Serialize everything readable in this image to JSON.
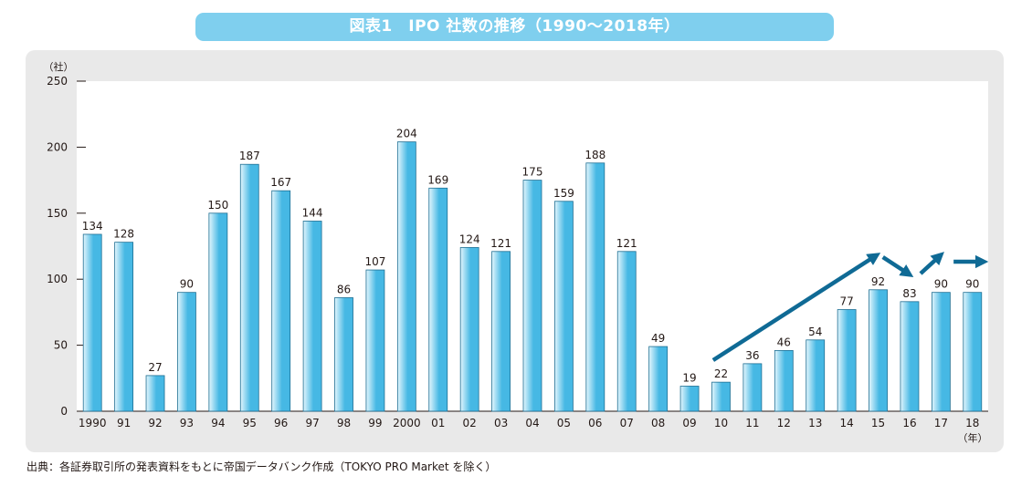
{
  "title": "図表1　IPO 社数の推移（1990～2018年）",
  "source": "出典：各証券取引所の発表資料をもとに帝国データバンク作成（TOKYO PRO Market を除く）",
  "colors": {
    "title_bg": "#7fcfee",
    "panel_bg": "#e9e9e9",
    "plot_bg": "#ffffff",
    "bar_light": "#e3f6fd",
    "bar_dark": "#46b8e4",
    "bar_stroke": "#1f6f93",
    "arrow": "#0f6a95"
  },
  "chart_data": {
    "type": "bar",
    "ylabel": "（社）",
    "xlabel": "（年）",
    "ylim": [
      0,
      250
    ],
    "yticks": [
      0,
      50,
      100,
      150,
      200,
      250
    ],
    "grid": false,
    "categories": [
      "1990",
      "91",
      "92",
      "93",
      "94",
      "95",
      "96",
      "97",
      "98",
      "99",
      "2000",
      "01",
      "02",
      "03",
      "04",
      "05",
      "06",
      "07",
      "08",
      "09",
      "10",
      "11",
      "12",
      "13",
      "14",
      "15",
      "16",
      "17",
      "18"
    ],
    "values": [
      134,
      128,
      27,
      90,
      150,
      187,
      167,
      144,
      86,
      107,
      204,
      169,
      124,
      121,
      175,
      159,
      188,
      121,
      49,
      19,
      22,
      36,
      46,
      54,
      77,
      92,
      83,
      90,
      90
    ],
    "data_labels": [
      "134",
      "128",
      "27",
      "90",
      "150",
      "187",
      "167",
      "144",
      "86",
      "107",
      "204",
      "169",
      "124",
      "121",
      "175",
      "159",
      "188",
      "121",
      "49",
      "19",
      "22",
      "36",
      "46",
      "54",
      "77",
      "92",
      "83",
      "90",
      "90"
    ],
    "annotations": [
      {
        "type": "trend-arrow",
        "from_category": "10",
        "to_category": "15",
        "direction": "up"
      },
      {
        "type": "trend-arrow",
        "from_category": "15",
        "to_category": "16",
        "direction": "down"
      },
      {
        "type": "trend-arrow",
        "from_category": "16",
        "to_category": "17",
        "direction": "up"
      },
      {
        "type": "trend-arrow",
        "from_category": "17",
        "to_category": "18",
        "direction": "flat"
      }
    ]
  }
}
